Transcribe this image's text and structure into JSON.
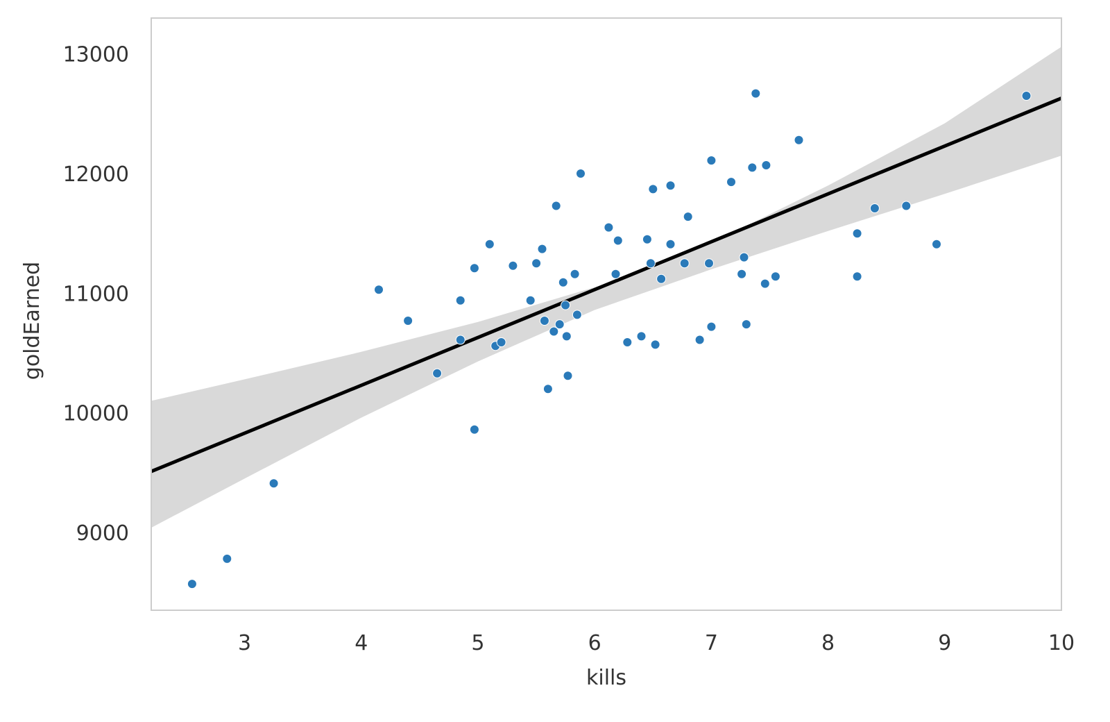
{
  "chart_data": {
    "type": "scatter",
    "title": "",
    "xlabel": "kills",
    "ylabel": "goldEarned",
    "xlim": [
      2.2,
      10.0
    ],
    "ylim": [
      8350,
      13300
    ],
    "xticks": [
      3,
      4,
      5,
      6,
      7,
      8,
      9,
      10
    ],
    "yticks": [
      9000,
      10000,
      11000,
      12000,
      13000
    ],
    "grid": false,
    "legend": "none",
    "colors": {
      "points": "#2a7ab9",
      "line": "#000000",
      "band": "#d9d9d9",
      "frame": "#cccccc"
    },
    "points": [
      {
        "x": 2.55,
        "y": 8570
      },
      {
        "x": 2.85,
        "y": 8780
      },
      {
        "x": 3.25,
        "y": 9410
      },
      {
        "x": 4.15,
        "y": 11030
      },
      {
        "x": 4.4,
        "y": 10770
      },
      {
        "x": 4.65,
        "y": 10330
      },
      {
        "x": 4.85,
        "y": 10940
      },
      {
        "x": 4.85,
        "y": 10610
      },
      {
        "x": 4.97,
        "y": 11210
      },
      {
        "x": 4.97,
        "y": 9860
      },
      {
        "x": 5.1,
        "y": 11410
      },
      {
        "x": 5.15,
        "y": 10560
      },
      {
        "x": 5.2,
        "y": 10590
      },
      {
        "x": 5.3,
        "y": 11230
      },
      {
        "x": 5.45,
        "y": 10940
      },
      {
        "x": 5.5,
        "y": 11250
      },
      {
        "x": 5.55,
        "y": 11370
      },
      {
        "x": 5.57,
        "y": 10770
      },
      {
        "x": 5.6,
        "y": 10200
      },
      {
        "x": 5.65,
        "y": 10680
      },
      {
        "x": 5.67,
        "y": 11730
      },
      {
        "x": 5.7,
        "y": 10740
      },
      {
        "x": 5.73,
        "y": 11090
      },
      {
        "x": 5.75,
        "y": 10900
      },
      {
        "x": 5.76,
        "y": 10640
      },
      {
        "x": 5.77,
        "y": 10310
      },
      {
        "x": 5.83,
        "y": 11160
      },
      {
        "x": 5.85,
        "y": 10820
      },
      {
        "x": 5.88,
        "y": 12000
      },
      {
        "x": 6.12,
        "y": 11550
      },
      {
        "x": 6.18,
        "y": 11160
      },
      {
        "x": 6.2,
        "y": 11440
      },
      {
        "x": 6.28,
        "y": 10590
      },
      {
        "x": 6.4,
        "y": 10640
      },
      {
        "x": 6.45,
        "y": 11450
      },
      {
        "x": 6.48,
        "y": 11250
      },
      {
        "x": 6.5,
        "y": 11870
      },
      {
        "x": 6.52,
        "y": 10570
      },
      {
        "x": 6.57,
        "y": 11120
      },
      {
        "x": 6.65,
        "y": 11900
      },
      {
        "x": 6.65,
        "y": 11410
      },
      {
        "x": 6.77,
        "y": 11250
      },
      {
        "x": 6.8,
        "y": 11640
      },
      {
        "x": 6.9,
        "y": 10610
      },
      {
        "x": 6.98,
        "y": 11250
      },
      {
        "x": 7.0,
        "y": 12110
      },
      {
        "x": 7.0,
        "y": 10720
      },
      {
        "x": 7.17,
        "y": 11930
      },
      {
        "x": 7.26,
        "y": 11160
      },
      {
        "x": 7.28,
        "y": 11300
      },
      {
        "x": 7.3,
        "y": 10740
      },
      {
        "x": 7.35,
        "y": 12050
      },
      {
        "x": 7.38,
        "y": 12670
      },
      {
        "x": 7.46,
        "y": 11080
      },
      {
        "x": 7.47,
        "y": 12070
      },
      {
        "x": 7.55,
        "y": 11140
      },
      {
        "x": 7.75,
        "y": 12280
      },
      {
        "x": 8.25,
        "y": 11500
      },
      {
        "x": 8.25,
        "y": 11140
      },
      {
        "x": 8.4,
        "y": 11710
      },
      {
        "x": 8.67,
        "y": 11730
      },
      {
        "x": 8.93,
        "y": 11410
      },
      {
        "x": 9.7,
        "y": 12650
      }
    ],
    "regression": {
      "x": [
        2.2,
        10.0
      ],
      "y": [
        9510,
        12630
      ]
    },
    "confidence_band": {
      "x": [
        2.2,
        3.0,
        4.0,
        5.0,
        6.0,
        6.5,
        7.0,
        8.0,
        9.0,
        10.0
      ],
      "upper": [
        10100,
        10280,
        10510,
        10760,
        11050,
        11210,
        11420,
        11900,
        12420,
        13060
      ],
      "lower": [
        9040,
        9450,
        9960,
        10430,
        10860,
        11030,
        11200,
        11520,
        11830,
        12150
      ]
    }
  }
}
